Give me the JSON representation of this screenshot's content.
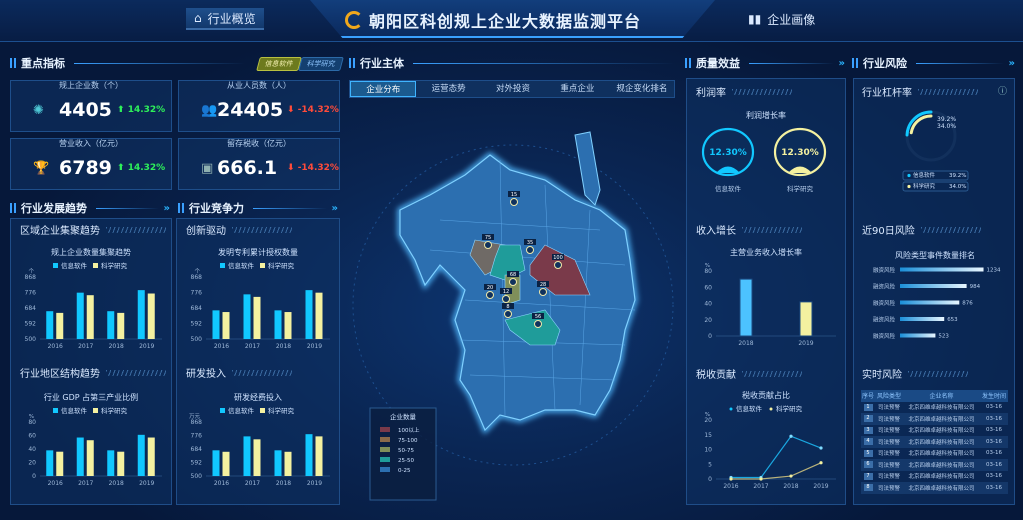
{
  "header": {
    "title": "朝阳区科创规上企业大数据监测平台",
    "nav_left": "行业概览",
    "nav_right": "企业画像"
  },
  "colors": {
    "series1": "#11c8ff",
    "series2": "#f4f1a0",
    "accent": "#3aa0ff",
    "up": "#2ef05a",
    "down": "#ff4b3a"
  },
  "legend": [
    "信息软件",
    "科学研究"
  ],
  "key_indicators": {
    "title": "重点指标",
    "tabs": [
      "信息软件",
      "科学研究"
    ],
    "cards": [
      {
        "label": "规上企业数（个）",
        "value": "4405",
        "change": "14.32%",
        "dir": "up",
        "icon": "network-icon"
      },
      {
        "label": "从业人员数（人）",
        "value": "24405",
        "change": "-14.32%",
        "dir": "down",
        "icon": "people-icon"
      },
      {
        "label": "营业收入（亿元）",
        "value": "6789",
        "change": "14.32%",
        "dir": "up",
        "icon": "trophy-icon"
      },
      {
        "label": "留存税收（亿元）",
        "value": "666.1",
        "change": "-14.32%",
        "dir": "down",
        "icon": "tax-icon"
      }
    ]
  },
  "sections": {
    "dev": "行业发展趋势",
    "comp": "行业竞争力",
    "main": "行业主体",
    "quality": "质量效益",
    "risk": "行业风险"
  },
  "subs": {
    "cluster": "区域企业集聚趋势",
    "innov": "创新驱动",
    "region": "行业地区结构趋势",
    "rd": "研发投入",
    "profit": "利润率",
    "income": "收入增长",
    "tax": "税收贡献",
    "leverage": "行业杠杆率",
    "risk90": "近90日风险",
    "realtime": "实时风险"
  },
  "main_tabs": [
    "企业分布",
    "运营态势",
    "对外投资",
    "重点企业",
    "规企变化排名"
  ],
  "map": {
    "legend_title": "企业数量",
    "legend": [
      {
        "label": "100以上",
        "color": "#7a3a4a"
      },
      {
        "label": "75-100",
        "color": "#8a6a4a"
      },
      {
        "label": "50-75",
        "color": "#7f8f5a"
      },
      {
        "label": "25-50",
        "color": "#1f9c9a"
      },
      {
        "label": "0-25",
        "color": "#2c6fb0"
      }
    ],
    "markers": [
      "15",
      "75",
      "35",
      "100",
      "68",
      "28",
      "20",
      "12",
      "8",
      "56"
    ]
  },
  "chart_data": [
    {
      "type": "bar",
      "title": "规上企业数量集聚趋势",
      "ylabel": "个",
      "categories": [
        "2016",
        "2017",
        "2018",
        "2019"
      ],
      "ylim": [
        500,
        868
      ],
      "yticks": [
        500,
        592,
        684,
        776,
        868
      ],
      "series": [
        {
          "name": "信息软件",
          "values": [
            665,
            775,
            665,
            790
          ]
        },
        {
          "name": "科学研究",
          "values": [
            655,
            760,
            655,
            770
          ]
        }
      ]
    },
    {
      "type": "bar",
      "title": "发明专利累计授权数量",
      "ylabel": "个",
      "categories": [
        "2016",
        "2017",
        "2018",
        "2019"
      ],
      "ylim": [
        500,
        868
      ],
      "yticks": [
        500,
        592,
        684,
        776,
        868
      ],
      "series": [
        {
          "name": "信息软件",
          "values": [
            670,
            765,
            670,
            790
          ]
        },
        {
          "name": "科学研究",
          "values": [
            660,
            750,
            660,
            775
          ]
        }
      ]
    },
    {
      "type": "bar",
      "title": "行业 GDP 占第三产业比例",
      "ylabel": "%",
      "categories": [
        "2016",
        "2017",
        "2018",
        "2019"
      ],
      "ylim": [
        0,
        80
      ],
      "yticks": [
        0,
        20,
        40,
        60,
        80
      ],
      "series": [
        {
          "name": "信息软件",
          "values": [
            38,
            57,
            38,
            61
          ]
        },
        {
          "name": "科学研究",
          "values": [
            36,
            53,
            36,
            57
          ]
        }
      ]
    },
    {
      "type": "bar",
      "title": "研发经费投入",
      "ylabel": "万元",
      "categories": [
        "2016",
        "2017",
        "2018",
        "2019"
      ],
      "ylim": [
        500,
        868
      ],
      "yticks": [
        500,
        592,
        684,
        776,
        868
      ],
      "series": [
        {
          "name": "信息软件",
          "values": [
            675,
            770,
            675,
            785
          ]
        },
        {
          "name": "科学研究",
          "values": [
            665,
            750,
            665,
            770
          ]
        }
      ]
    },
    {
      "type": "bar",
      "title": "主营业务收入增长率",
      "ylabel": "%",
      "categories": [
        "2018",
        "2019"
      ],
      "ylim": [
        0,
        80
      ],
      "yticks": [
        0,
        20,
        40,
        60,
        80
      ],
      "values": [
        70,
        42
      ]
    },
    {
      "type": "line",
      "title": "税收贡献占比",
      "ylabel": "%",
      "categories": [
        "2016",
        "2017",
        "2018",
        "2019"
      ],
      "ylim": [
        0,
        20
      ],
      "yticks": [
        0,
        5,
        10,
        15,
        20
      ],
      "series": [
        {
          "name": "信息软件",
          "values": [
            0.5,
            0.5,
            14.5,
            10.5
          ]
        },
        {
          "name": "科学研究",
          "values": [
            0,
            0,
            1,
            5.5
          ]
        }
      ]
    },
    {
      "type": "bar",
      "title": "风险类型事件数量排名",
      "orientation": "horizontal",
      "categories": [
        "融资风险",
        "融资风险",
        "融资风险",
        "融资风险",
        "融资风险"
      ],
      "values": [
        1234,
        984,
        876,
        653,
        523
      ]
    },
    {
      "type": "pie",
      "title": "",
      "series": [
        {
          "name": "信息软件",
          "value": "39.2%"
        },
        {
          "name": "科学研究",
          "value": "34.0%"
        }
      ]
    }
  ],
  "profit": {
    "title": "利润增长率",
    "gauges": [
      {
        "value": "12.30%",
        "label": "信息软件"
      },
      {
        "value": "12.30%",
        "label": "科学研究"
      }
    ]
  },
  "realtime": {
    "columns": [
      "序号",
      "风险类型",
      "企业名称",
      "发生时间"
    ],
    "rows": [
      [
        "1",
        "司法预警",
        "北京四维卓越科技有限公司",
        "03-16"
      ],
      [
        "2",
        "司法预警",
        "北京四维卓越科技有限公司",
        "03-16"
      ],
      [
        "3",
        "司法预警",
        "北京四维卓越科技有限公司",
        "03-16"
      ],
      [
        "4",
        "司法预警",
        "北京四维卓越科技有限公司",
        "03-16"
      ],
      [
        "5",
        "司法预警",
        "北京四维卓越科技有限公司",
        "03-16"
      ],
      [
        "6",
        "司法预警",
        "北京四维卓越科技有限公司",
        "03-16"
      ],
      [
        "7",
        "司法预警",
        "北京四维卓越科技有限公司",
        "03-16"
      ],
      [
        "8",
        "司法预警",
        "北京四维卓越科技有限公司",
        "03-16"
      ]
    ]
  }
}
